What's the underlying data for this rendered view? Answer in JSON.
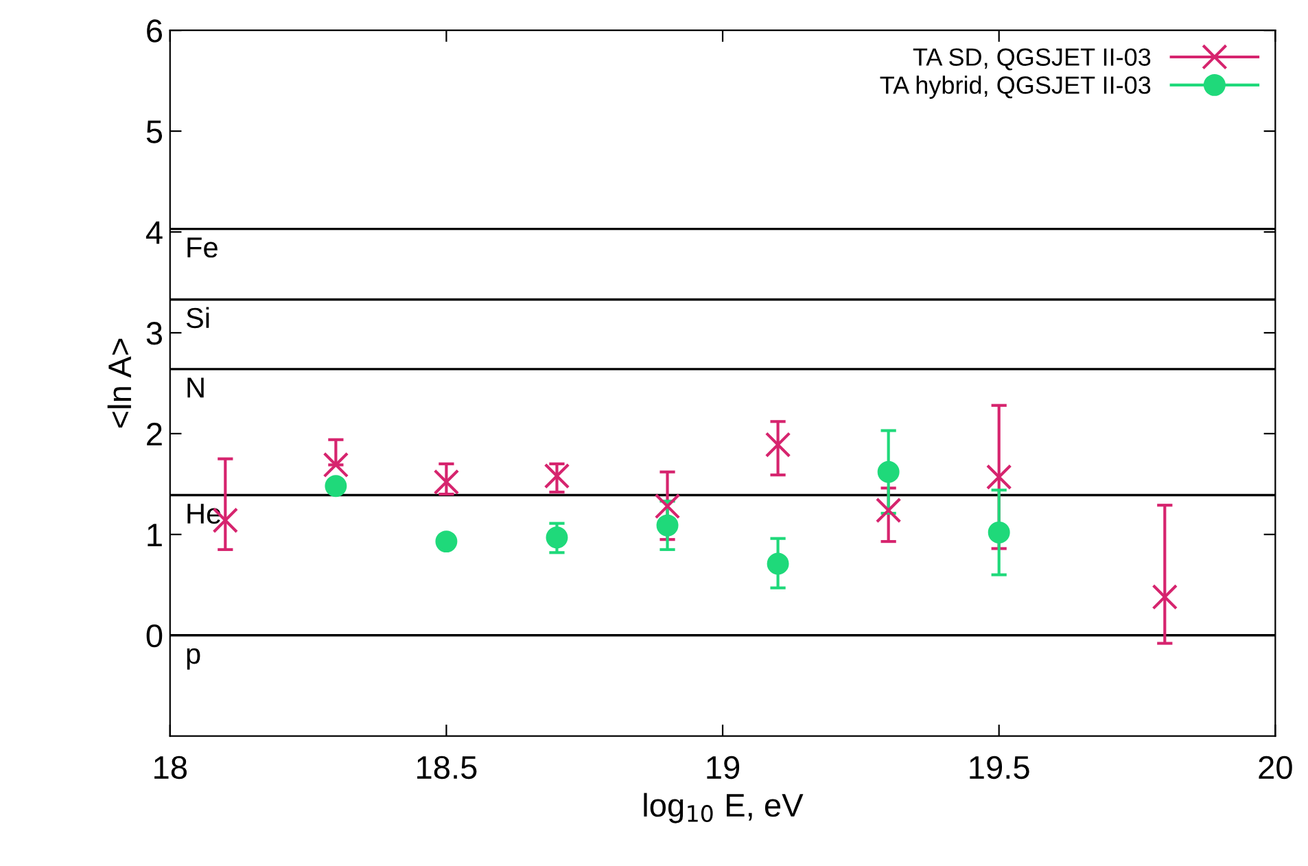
{
  "chart_data": {
    "type": "scatter",
    "xlabel": "log$_{10}$ E, eV",
    "ylabel": "<ln A>",
    "xlim": [
      18,
      20
    ],
    "xticks": [
      18,
      18.5,
      19,
      19.5,
      20
    ],
    "ylim": [
      -1,
      6
    ],
    "yticks": [
      0,
      1,
      2,
      3,
      4,
      5,
      6
    ],
    "grid": false,
    "legend": "top right",
    "series": [
      {
        "name": "TA SD, QGSJET II-03",
        "color": "#d6246e",
        "marker": "cross",
        "x": [
          18.1,
          18.3,
          18.5,
          18.7,
          18.9,
          19.1,
          19.3,
          19.5,
          19.8
        ],
        "values": [
          1.14,
          1.69,
          1.52,
          1.58,
          1.28,
          1.89,
          1.24,
          1.57,
          0.38
        ],
        "errors": [
          [
            0.85,
            1.75
          ],
          [
            1.69,
            1.94
          ],
          [
            1.4,
            1.7
          ],
          [
            1.42,
            1.7
          ],
          [
            0.95,
            1.62
          ],
          [
            1.59,
            2.12
          ],
          [
            0.93,
            1.46
          ],
          [
            0.86,
            2.28
          ],
          [
            -0.08,
            1.29
          ]
        ]
      },
      {
        "name": "TA hybrid, QGSJET II-03",
        "color": "#1fd97a",
        "marker": "circle",
        "x": [
          18.3,
          18.5,
          18.7,
          18.9,
          19.1,
          19.3,
          19.5
        ],
        "values": [
          1.48,
          0.93,
          0.97,
          1.09,
          0.71,
          1.62,
          1.02
        ],
        "errors": [
          null,
          null,
          [
            0.82,
            1.11
          ],
          [
            0.85,
            1.33
          ],
          [
            0.47,
            0.96
          ],
          [
            1.21,
            2.03
          ],
          [
            0.6,
            1.44
          ]
        ]
      }
    ],
    "ref_lines": [
      {
        "axis": "y",
        "value": 4.03,
        "label": "Fe",
        "color": "#000000"
      },
      {
        "axis": "y",
        "value": 3.33,
        "label": "Si",
        "color": "#000000"
      },
      {
        "axis": "y",
        "value": 2.64,
        "label": "N",
        "color": "#000000"
      },
      {
        "axis": "y",
        "value": 1.39,
        "label": "He",
        "color": "#000000"
      },
      {
        "axis": "y",
        "value": 0,
        "label": "p",
        "color": "#000000"
      }
    ]
  }
}
